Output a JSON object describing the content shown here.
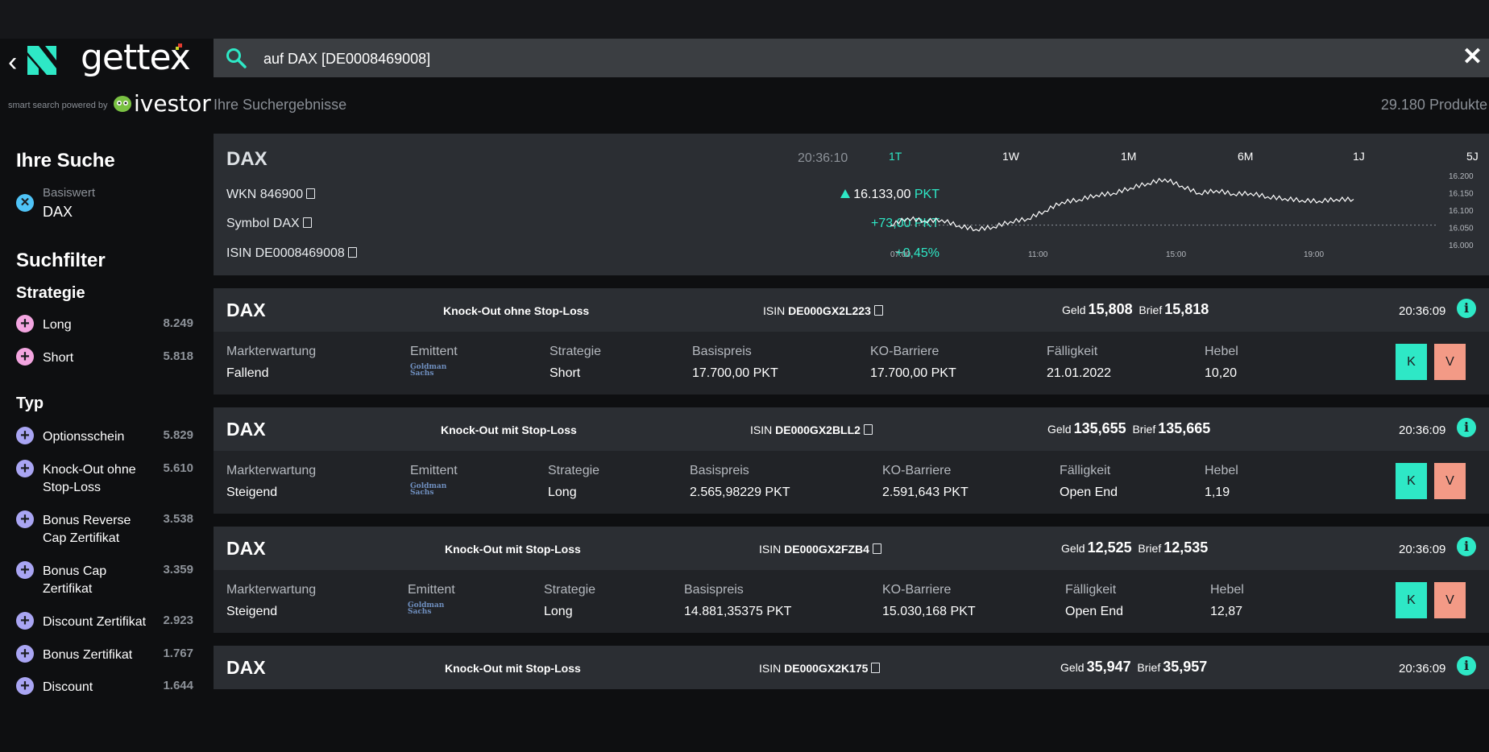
{
  "brand": {
    "name": "gettex",
    "powered_by": "smart search powered by",
    "partner": "ivestor"
  },
  "search": {
    "value": "auf DAX [DE0008469008]"
  },
  "results": {
    "label": "Ihre Suchergebnisse",
    "count": "29.180 Produkte"
  },
  "sidebar": {
    "search_title": "Ihre Suche",
    "basis_label": "Basiswert",
    "basis_value": "DAX",
    "filter_title": "Suchfilter",
    "strategy_title": "Strategie",
    "strategy": [
      {
        "label": "Long",
        "count": "8.249"
      },
      {
        "label": "Short",
        "count": "5.818"
      }
    ],
    "type_title": "Typ",
    "types": [
      {
        "label": "Optionsschein",
        "count": "5.829"
      },
      {
        "label": "Knock-Out ohne Stop-Loss",
        "count": "5.610"
      },
      {
        "label": "Bonus Reverse Cap Zertifikat",
        "count": "3.538"
      },
      {
        "label": "Bonus Cap Zertifikat",
        "count": "3.359"
      },
      {
        "label": "Discount Zertifikat",
        "count": "2.923"
      },
      {
        "label": "Bonus Zertifikat",
        "count": "1.767"
      },
      {
        "label": "Discount",
        "count": "1.644"
      }
    ]
  },
  "overview": {
    "name": "DAX",
    "time": "20:36:10",
    "wkn": "WKN 846900",
    "symbol": "Symbol DAX",
    "isin": "ISIN DE0008469008",
    "price": "16.133,00",
    "price_unit": "PKT",
    "change": "+73,00 PKT",
    "change_pct": "+0,45%",
    "periods": [
      "1T",
      "1W",
      "1M",
      "6M",
      "1J",
      "5J"
    ],
    "active_period": "1T",
    "x_ticks": [
      "07:00",
      "11:00",
      "15:00",
      "19:00"
    ],
    "y_ticks": [
      "16.200",
      "16.150",
      "16.100",
      "16.050",
      "16.000"
    ]
  },
  "chart_data": {
    "type": "line",
    "title": "",
    "xlabel": "",
    "ylabel": "",
    "x": [
      "07:00",
      "07:30",
      "08:00",
      "08:30",
      "09:00",
      "09:30",
      "10:00",
      "10:30",
      "11:00",
      "11:30",
      "12:00",
      "12:30",
      "13:00",
      "13:30",
      "14:00",
      "14:30",
      "15:00",
      "15:30",
      "16:00",
      "16:30",
      "17:00",
      "17:30",
      "18:00",
      "18:30",
      "19:00",
      "19:30",
      "20:00",
      "20:30"
    ],
    "series": [
      {
        "values": [
          16060,
          16080,
          16072,
          16075,
          16058,
          16048,
          16055,
          16070,
          16078,
          16100,
          16125,
          16132,
          16145,
          16150,
          16165,
          16178,
          16190,
          16170,
          16150,
          16158,
          16148,
          16150,
          16140,
          16135,
          16130,
          16128,
          16133,
          16133
        ]
      }
    ],
    "reference_line": 16060,
    "ylim": [
      16000,
      16200
    ]
  },
  "field_labels": {
    "markt": "Markterwartung",
    "emittent": "Emittent",
    "strategie": "Strategie",
    "basis": "Basispreis",
    "ko": "KO-Barriere",
    "faellig": "Fälligkeit",
    "hebel": "Hebel",
    "geld": "Geld",
    "brief": "Brief",
    "isin_prefix": "ISIN",
    "issuer_line1": "Goldman",
    "issuer_line2": "Sachs",
    "buy": "K",
    "sell": "V"
  },
  "products": [
    {
      "name": "DAX",
      "type": "Knock-Out ohne Stop-Loss",
      "isin": "DE000GX2L223",
      "geld": "15,808",
      "brief": "15,818",
      "time": "20:36:09",
      "markt": "Fallend",
      "strategie": "Short",
      "basis": "17.700,00 PKT",
      "ko": "17.700,00 PKT",
      "faellig": "21.01.2022",
      "hebel": "10,20"
    },
    {
      "name": "DAX",
      "type": "Knock-Out mit Stop-Loss",
      "isin": "DE000GX2BLL2",
      "geld": "135,655",
      "brief": "135,665",
      "time": "20:36:09",
      "markt": "Steigend",
      "strategie": "Long",
      "basis": "2.565,98229 PKT",
      "ko": "2.591,643 PKT",
      "faellig": "Open End",
      "hebel": "1,19"
    },
    {
      "name": "DAX",
      "type": "Knock-Out mit Stop-Loss",
      "isin": "DE000GX2FZB4",
      "geld": "12,525",
      "brief": "12,535",
      "time": "20:36:09",
      "markt": "Steigend",
      "strategie": "Long",
      "basis": "14.881,35375 PKT",
      "ko": "15.030,168 PKT",
      "faellig": "Open End",
      "hebel": "12,87"
    },
    {
      "name": "DAX",
      "type": "Knock-Out mit Stop-Loss",
      "isin": "DE000GX2K175",
      "geld": "35,947",
      "brief": "35,957",
      "time": "20:36:09"
    }
  ]
}
